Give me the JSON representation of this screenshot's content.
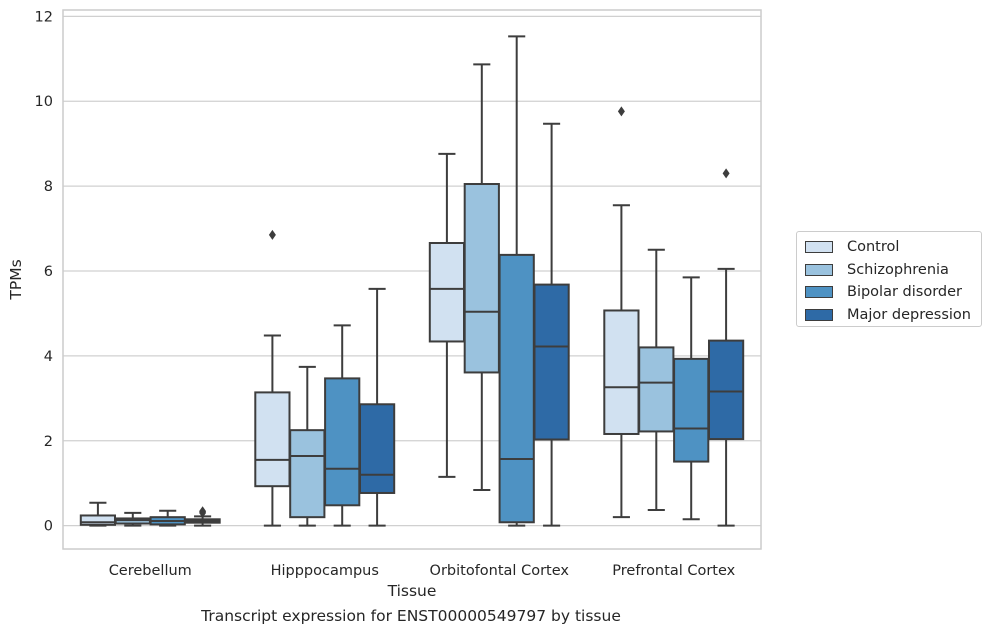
{
  "caption": "Transcript expression for ENST00000549797 by tissue",
  "chart_data": {
    "type": "box",
    "xlabel": "Tissue",
    "ylabel": "TPMs",
    "ylim": [
      -0.55,
      12.15
    ],
    "yticks": [
      0,
      2,
      4,
      6,
      8,
      10,
      12
    ],
    "grid": "horizontal",
    "legend_placement": "outside-right",
    "categories": [
      "Cerebellum",
      "Hipppocampus",
      "Orbitofontal Cortex",
      "Prefrontal Cortex"
    ],
    "series": [
      {
        "name": "Control",
        "color": "#d1e1f1",
        "boxes": [
          {
            "whislo": 0.0,
            "q1": 0.02,
            "med": 0.08,
            "q3": 0.24,
            "whishi": 0.54,
            "fliers": []
          },
          {
            "whislo": 0.0,
            "q1": 0.93,
            "med": 1.55,
            "q3": 3.14,
            "whishi": 4.48,
            "fliers": [
              6.85
            ]
          },
          {
            "whislo": 1.15,
            "q1": 4.34,
            "med": 5.58,
            "q3": 6.66,
            "whishi": 8.76,
            "fliers": []
          },
          {
            "whislo": 0.2,
            "q1": 2.16,
            "med": 3.26,
            "q3": 5.07,
            "whishi": 7.55,
            "fliers": [
              9.76
            ]
          }
        ]
      },
      {
        "name": "Schizophrenia",
        "color": "#9ac2de",
        "boxes": [
          {
            "whislo": 0.0,
            "q1": 0.05,
            "med": 0.13,
            "q3": 0.17,
            "whishi": 0.3,
            "fliers": []
          },
          {
            "whislo": 0.0,
            "q1": 0.2,
            "med": 1.64,
            "q3": 2.25,
            "whishi": 3.74,
            "fliers": []
          },
          {
            "whislo": 0.84,
            "q1": 3.61,
            "med": 5.04,
            "q3": 8.05,
            "whishi": 10.87,
            "fliers": []
          },
          {
            "whislo": 0.37,
            "q1": 2.22,
            "med": 3.37,
            "q3": 4.2,
            "whishi": 6.5,
            "fliers": []
          }
        ]
      },
      {
        "name": "Bipolar disorder",
        "color": "#4e92c3",
        "boxes": [
          {
            "whislo": 0.0,
            "q1": 0.03,
            "med": 0.11,
            "q3": 0.2,
            "whishi": 0.35,
            "fliers": []
          },
          {
            "whislo": 0.0,
            "q1": 0.48,
            "med": 1.34,
            "q3": 3.47,
            "whishi": 4.72,
            "fliers": []
          },
          {
            "whislo": 0.0,
            "q1": 0.08,
            "med": 1.57,
            "q3": 6.38,
            "whishi": 11.53,
            "fliers": []
          },
          {
            "whislo": 0.15,
            "q1": 1.51,
            "med": 2.29,
            "q3": 3.93,
            "whishi": 5.85,
            "fliers": []
          }
        ]
      },
      {
        "name": "Major depression",
        "color": "#2e6aa6",
        "boxes": [
          {
            "whislo": 0.0,
            "q1": 0.07,
            "med": 0.11,
            "q3": 0.15,
            "whishi": 0.22,
            "fliers": [
              0.3,
              0.34
            ]
          },
          {
            "whislo": 0.0,
            "q1": 0.77,
            "med": 1.2,
            "q3": 2.86,
            "whishi": 5.58,
            "fliers": []
          },
          {
            "whislo": 0.0,
            "q1": 2.03,
            "med": 4.22,
            "q3": 5.68,
            "whishi": 9.47,
            "fliers": []
          },
          {
            "whislo": 0.0,
            "q1": 2.04,
            "med": 3.16,
            "q3": 4.36,
            "whishi": 6.05,
            "fliers": [
              8.3
            ]
          }
        ]
      }
    ]
  }
}
